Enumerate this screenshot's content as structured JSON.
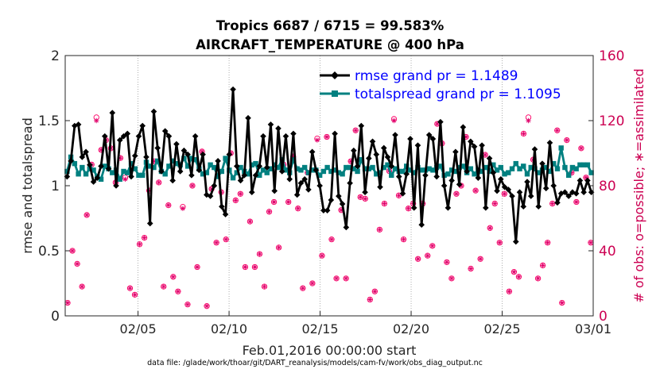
{
  "chart_data": {
    "type": "line",
    "title_line1": "Tropics 6687 / 6715 = 99.583%",
    "title_line2": "AIRCRAFT_TEMPERATURE @ 400 hPa",
    "ylabel_left": "rmse and totalspread",
    "ylabel_right": "# of obs: o=possible; ∗=assimilated",
    "xlabel": "Feb.01,2016 00:00:00 start",
    "footer": "data file: /glade/work/thoar/git/DART_reanalysis/models/cam-fv/work/obs_diag_output.nc",
    "xlim": [
      1,
      30
    ],
    "ylim_left": [
      0,
      2
    ],
    "ylim_right": [
      0,
      160
    ],
    "x_ticks": [
      {
        "value": 5,
        "label": "02/05"
      },
      {
        "value": 10,
        "label": "02/10"
      },
      {
        "value": 15,
        "label": "02/15"
      },
      {
        "value": 20,
        "label": "02/20"
      },
      {
        "value": 25,
        "label": "02/25"
      },
      {
        "value": 30,
        "label": "03/01"
      }
    ],
    "y_ticks_left": [
      {
        "value": 0,
        "label": "0"
      },
      {
        "value": 0.5,
        "label": "0.5"
      },
      {
        "value": 1,
        "label": "1"
      },
      {
        "value": 1.5,
        "label": "1.5"
      },
      {
        "value": 2,
        "label": "2"
      }
    ],
    "y_ticks_right": [
      {
        "value": 0,
        "label": "0"
      },
      {
        "value": 40,
        "label": "40"
      },
      {
        "value": 80,
        "label": "80"
      },
      {
        "value": 120,
        "label": "120"
      },
      {
        "value": 160,
        "label": "160"
      }
    ],
    "series": [
      {
        "name": "rmse",
        "legend": "rmse grand pr = 1.1489",
        "color": "#000000",
        "marker": "diamond",
        "values": [
          1.07,
          1.19,
          1.46,
          1.47,
          1.22,
          1.26,
          1.16,
          1.03,
          1.06,
          1.15,
          1.38,
          1.13,
          1.56,
          1.0,
          1.35,
          1.38,
          1.4,
          1.07,
          1.23,
          1.38,
          1.46,
          1.22,
          0.71,
          1.57,
          1.29,
          1.11,
          1.42,
          1.38,
          1.04,
          1.32,
          1.11,
          1.27,
          1.24,
          1.08,
          1.38,
          1.12,
          1.24,
          0.93,
          0.92,
          1.0,
          1.19,
          0.84,
          0.78,
          1.24,
          1.74,
          1.15,
          1.04,
          1.08,
          1.52,
          0.95,
          1.08,
          1.15,
          1.38,
          1.14,
          1.47,
          0.96,
          1.44,
          1.11,
          1.38,
          1.05,
          1.4,
          0.93,
          1.02,
          1.05,
          0.97,
          1.26,
          1.12,
          1.0,
          0.81,
          0.81,
          0.89,
          1.4,
          0.92,
          0.86,
          0.68,
          1.02,
          1.27,
          1.15,
          1.46,
          0.95,
          1.21,
          1.34,
          1.24,
          0.99,
          1.29,
          1.22,
          1.15,
          1.39,
          1.07,
          0.94,
          1.09,
          1.36,
          0.83,
          1.31,
          0.7,
          1.08,
          1.39,
          1.36,
          1.07,
          1.49,
          1.0,
          0.83,
          1.04,
          1.26,
          1.01,
          1.45,
          1.11,
          1.34,
          1.3,
          1.06,
          1.31,
          0.83,
          1.21,
          1.1,
          0.96,
          1.05,
          0.99,
          0.97,
          0.92,
          0.57,
          0.95,
          0.84,
          1.03,
          0.92,
          1.28,
          0.84,
          1.17,
          0.98,
          1.33,
          1.0,
          0.87,
          0.94,
          0.95,
          0.92,
          0.95,
          0.94,
          1.04,
          0.95,
          1.04,
          0.95
        ]
      },
      {
        "name": "totalspread",
        "legend": "totalspread grand pr = 1.1095",
        "color": "#008080",
        "marker": "square",
        "values": [
          1.11,
          1.22,
          1.17,
          1.09,
          1.14,
          1.09,
          1.13,
          1.12,
          1.07,
          1.05,
          1.15,
          1.13,
          1.1,
          1.12,
          1.05,
          1.11,
          1.1,
          1.17,
          1.13,
          1.08,
          1.08,
          1.18,
          1.15,
          1.14,
          1.19,
          1.11,
          1.09,
          1.15,
          1.19,
          1.17,
          1.16,
          1.21,
          1.15,
          1.21,
          1.2,
          1.13,
          1.09,
          1.1,
          1.16,
          1.14,
          1.07,
          1.11,
          1.21,
          1.12,
          1.06,
          1.1,
          1.14,
          1.11,
          1.09,
          1.16,
          1.17,
          1.08,
          1.12,
          1.1,
          1.13,
          1.16,
          1.14,
          1.2,
          1.12,
          1.1,
          1.2,
          1.13,
          1.12,
          1.14,
          1.1,
          1.12,
          1.12,
          1.08,
          1.11,
          1.14,
          1.11,
          1.12,
          1.1,
          1.09,
          1.14,
          1.14,
          1.13,
          1.11,
          1.2,
          1.13,
          1.13,
          1.14,
          1.09,
          1.1,
          1.14,
          1.16,
          1.08,
          1.13,
          1.11,
          1.11,
          1.15,
          1.12,
          1.1,
          1.14,
          1.12,
          1.12,
          1.13,
          1.12,
          1.14,
          1.15,
          1.08,
          1.09,
          1.12,
          1.11,
          1.14,
          1.15,
          1.1,
          1.13,
          1.09,
          1.12,
          1.11,
          1.14,
          1.11,
          1.16,
          1.12,
          1.14,
          1.09,
          1.1,
          1.13,
          1.17,
          1.13,
          1.15,
          1.09,
          1.14,
          1.13,
          1.1,
          1.12,
          1.14,
          1.11,
          1.17,
          1.13,
          1.29,
          1.14,
          1.08,
          1.14,
          1.13,
          1.16,
          1.16,
          1.16,
          1.1
        ]
      },
      {
        "name": "obs_possible",
        "legend": "o=possible",
        "color": "#ff0066",
        "marker": "circle",
        "values": [
          8,
          40,
          32,
          18,
          62,
          93,
          122,
          102,
          108,
          103,
          82,
          97,
          85,
          17,
          13,
          44,
          48,
          77,
          95,
          82,
          18,
          68,
          24,
          15,
          67,
          7,
          80,
          30,
          101,
          6,
          78,
          45,
          76,
          47,
          100,
          71,
          75,
          30,
          58,
          30,
          38,
          18,
          64,
          70,
          42,
          93,
          70,
          98,
          66,
          17,
          88,
          20,
          109,
          37,
          110,
          47,
          23,
          65,
          23,
          95,
          114,
          73,
          72,
          10,
          15,
          53,
          69,
          89,
          121,
          74,
          47,
          66,
          69,
          35,
          69,
          37,
          43,
          118,
          106,
          33,
          23,
          75,
          80,
          110,
          29,
          77,
          35,
          99,
          54,
          69,
          45,
          75,
          15,
          27,
          24,
          112,
          122,
          96,
          23,
          31,
          45,
          69,
          114,
          8,
          108,
          88,
          70,
          103,
          85,
          45
        ]
      },
      {
        "name": "obs_assimilated",
        "legend": "∗=assimilated",
        "color": "#e0006b",
        "marker": "star",
        "values": [
          8,
          40,
          32,
          18,
          62,
          93,
          120,
          102,
          108,
          103,
          82,
          97,
          84,
          17,
          13,
          44,
          48,
          77,
          95,
          82,
          18,
          68,
          24,
          15,
          66,
          7,
          80,
          30,
          101,
          6,
          78,
          45,
          76,
          47,
          100,
          71,
          75,
          30,
          58,
          30,
          38,
          18,
          64,
          70,
          42,
          93,
          70,
          98,
          66,
          17,
          88,
          20,
          108,
          37,
          110,
          47,
          23,
          65,
          23,
          95,
          114,
          73,
          72,
          10,
          15,
          53,
          69,
          89,
          120,
          74,
          47,
          66,
          69,
          35,
          69,
          37,
          43,
          118,
          106,
          33,
          23,
          75,
          80,
          110,
          29,
          77,
          35,
          99,
          54,
          69,
          45,
          75,
          15,
          27,
          24,
          112,
          120,
          96,
          23,
          31,
          45,
          69,
          114,
          8,
          108,
          88,
          70,
          103,
          85,
          45
        ]
      }
    ]
  }
}
